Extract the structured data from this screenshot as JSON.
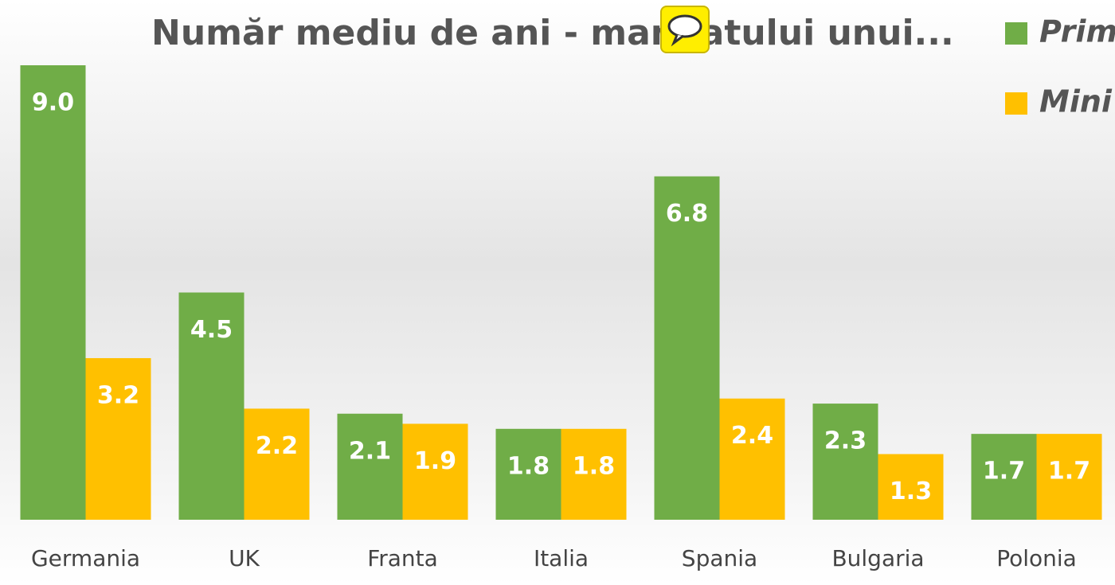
{
  "chart_data": {
    "type": "bar",
    "title": "Număr mediu de ani - mandatului unui...",
    "categories": [
      "Germania",
      "UK",
      "Franta",
      "Italia",
      "Spania",
      "Bulgaria",
      "Polonia"
    ],
    "series": [
      {
        "name": "Prim",
        "color": "#70ad47",
        "values": [
          9.0,
          4.5,
          2.1,
          1.8,
          6.8,
          2.3,
          1.7
        ],
        "value_labels": [
          "9.0",
          "4.5",
          "2.1",
          "1.8",
          "6.8",
          "2.3",
          "1.7"
        ]
      },
      {
        "name": "Mini",
        "color": "#ffc000",
        "values": [
          3.2,
          2.2,
          1.9,
          1.8,
          2.4,
          1.3,
          1.7
        ],
        "value_labels": [
          "3.2",
          "2.2",
          "1.9",
          "1.8",
          "2.4",
          "1.3",
          "1.7"
        ]
      }
    ],
    "ylim": [
      0,
      9
    ]
  }
}
